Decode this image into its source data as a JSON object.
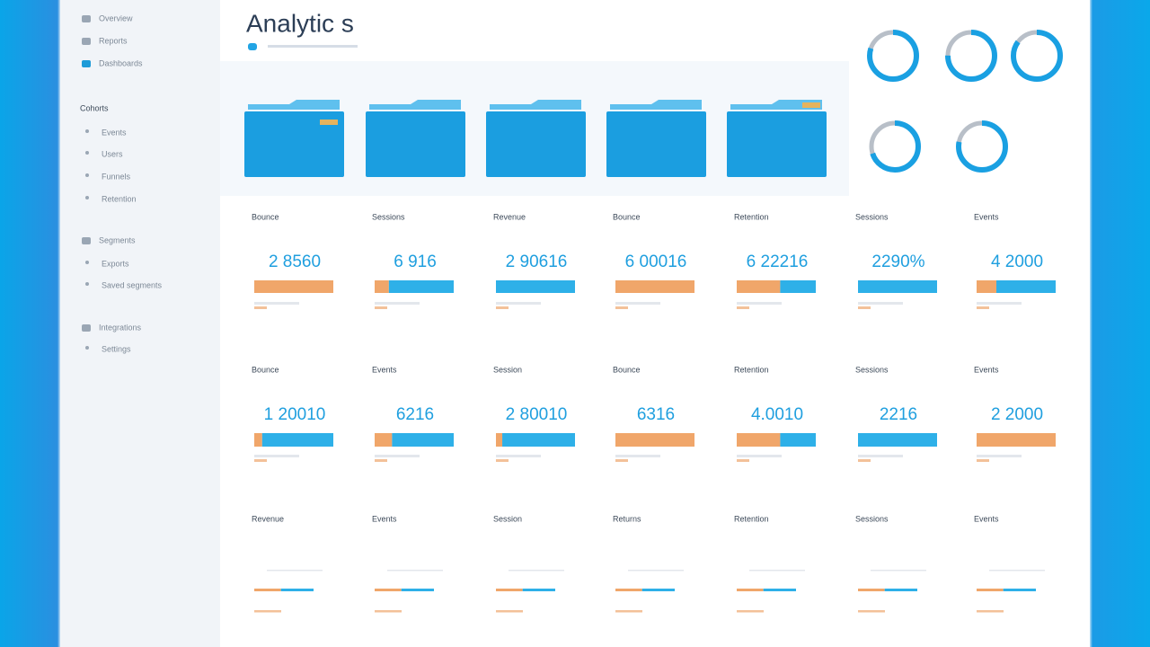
{
  "header": {
    "title": "Analytic s"
  },
  "sidebar": {
    "items": [
      "Overview",
      "Reports",
      "Dashboards",
      "Cohorts",
      "Events",
      "Users",
      "Funnels",
      "Retention",
      "Segments",
      "Exports",
      "Saved segments",
      "Integrations",
      "Settings"
    ]
  },
  "rings": [
    80,
    75,
    85,
    70,
    78
  ],
  "cards": {
    "rows": [
      [
        {
          "label": "Bounce",
          "value": "2 8560",
          "bar": [
            100,
            0
          ]
        },
        {
          "label": "Sessions",
          "value": "6 916",
          "bar": [
            18,
            82
          ]
        },
        {
          "label": "Revenue",
          "value": "2 90616",
          "bar": [
            0,
            100
          ]
        },
        {
          "label": "Bounce",
          "value": "6 00016",
          "bar": [
            100,
            0
          ]
        },
        {
          "label": "Retention",
          "value": "6 22216",
          "bar": [
            55,
            45
          ]
        },
        {
          "label": "Sessions",
          "value": "2290%",
          "bar": [
            0,
            100
          ]
        },
        {
          "label": "Events",
          "value": "4 2000",
          "bar": [
            25,
            75
          ]
        }
      ],
      [
        {
          "label": "Bounce",
          "value": "1 20010",
          "bar": [
            10,
            90
          ]
        },
        {
          "label": "Events",
          "value": "6216",
          "bar": [
            22,
            78
          ]
        },
        {
          "label": "Session",
          "value": "2 80010",
          "bar": [
            8,
            92
          ]
        },
        {
          "label": "Bounce",
          "value": "6316",
          "bar": [
            100,
            0
          ]
        },
        {
          "label": "Retention",
          "value": "4.0010",
          "bar": [
            55,
            45
          ]
        },
        {
          "label": "Sessions",
          "value": "2216",
          "bar": [
            0,
            100
          ]
        },
        {
          "label": "Events",
          "value": "2 2000",
          "bar": [
            100,
            0
          ]
        }
      ],
      [
        {
          "label": "Revenue",
          "bar": [
            45,
            55
          ]
        },
        {
          "label": "Events",
          "bar": [
            45,
            55
          ]
        },
        {
          "label": "Session",
          "bar": [
            45,
            55
          ]
        },
        {
          "label": "Returns",
          "bar": [
            45,
            55
          ]
        },
        {
          "label": "Retention",
          "bar": [
            45,
            55
          ]
        },
        {
          "label": "Sessions",
          "bar": [
            45,
            55
          ]
        },
        {
          "label": "Events",
          "bar": [
            45,
            55
          ]
        }
      ]
    ]
  }
}
